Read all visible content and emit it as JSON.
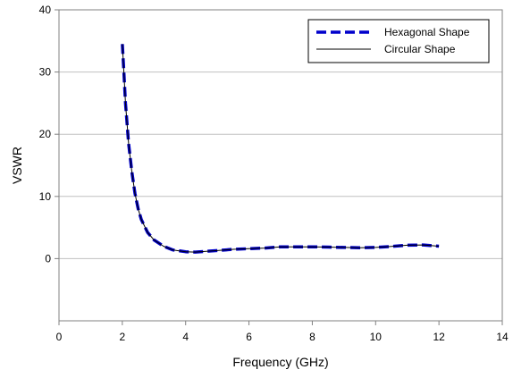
{
  "chart_data": {
    "type": "line",
    "title": "",
    "xlabel": "Frequency (GHz)",
    "ylabel": "VSWR",
    "xlim": [
      0,
      14
    ],
    "ylim": [
      -10,
      40
    ],
    "xticks": [
      0,
      2,
      4,
      6,
      8,
      10,
      12,
      14
    ],
    "yticks": [
      0,
      10,
      20,
      30,
      40
    ],
    "grid": "horizontal",
    "legend_position": "top-right",
    "series": [
      {
        "name": "Hexagonal Shape",
        "color": "#0000cc",
        "style": "dashed",
        "x": [
          2.0,
          2.05,
          2.1,
          2.2,
          2.3,
          2.4,
          2.5,
          2.6,
          2.8,
          3.0,
          3.3,
          3.6,
          4.0,
          4.3,
          4.6,
          5.0,
          5.5,
          6.0,
          6.5,
          7.0,
          7.5,
          8.0,
          8.5,
          9.0,
          9.5,
          10.0,
          10.5,
          11.0,
          11.5,
          12.0
        ],
        "y": [
          34.5,
          30.0,
          25.0,
          18.5,
          14.0,
          10.5,
          8.0,
          6.3,
          4.2,
          3.0,
          2.0,
          1.4,
          1.1,
          1.05,
          1.15,
          1.3,
          1.5,
          1.6,
          1.7,
          1.9,
          1.9,
          1.9,
          1.85,
          1.8,
          1.75,
          1.8,
          1.95,
          2.15,
          2.2,
          2.0
        ]
      },
      {
        "name": "Circular Shape",
        "color": "#000000",
        "style": "solid",
        "x": [
          2.0,
          2.05,
          2.1,
          2.2,
          2.3,
          2.4,
          2.5,
          2.6,
          2.8,
          3.0,
          3.3,
          3.6,
          4.0,
          4.3,
          4.6,
          5.0,
          5.5,
          6.0,
          6.5,
          7.0,
          7.5,
          8.0,
          8.5,
          9.0,
          9.5,
          10.0,
          10.5,
          11.0,
          11.5,
          12.0
        ],
        "y": [
          34.5,
          30.0,
          25.0,
          18.5,
          14.0,
          10.5,
          8.0,
          6.3,
          4.2,
          3.0,
          2.0,
          1.4,
          1.1,
          1.05,
          1.15,
          1.3,
          1.5,
          1.6,
          1.7,
          1.9,
          1.9,
          1.9,
          1.85,
          1.8,
          1.75,
          1.8,
          1.95,
          2.15,
          2.2,
          2.0
        ]
      }
    ]
  }
}
